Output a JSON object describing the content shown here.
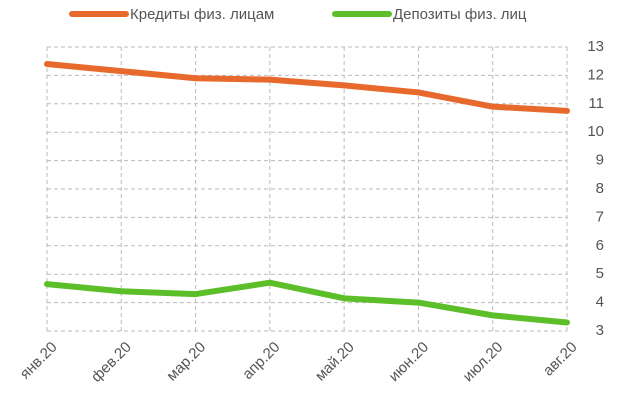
{
  "chart_data": {
    "type": "line",
    "categories": [
      "янв.20",
      "фев.20",
      "мар.20",
      "апр.20",
      "май.20",
      "июн.20",
      "июл.20",
      "авг.20"
    ],
    "series": [
      {
        "name": "Кредиты физ. лицам",
        "color": "#e8692c",
        "values": [
          12.4,
          12.15,
          11.9,
          11.85,
          11.65,
          11.4,
          10.9,
          10.75
        ]
      },
      {
        "name": "Депозиты физ. лиц",
        "color": "#5cbf2a",
        "values": [
          4.65,
          4.4,
          4.3,
          4.7,
          4.15,
          4.0,
          3.55,
          3.3
        ]
      }
    ],
    "ylim": [
      3,
      13
    ],
    "yticks": [
      3,
      4,
      5,
      6,
      7,
      8,
      9,
      10,
      11,
      12,
      13
    ],
    "grid": true
  }
}
